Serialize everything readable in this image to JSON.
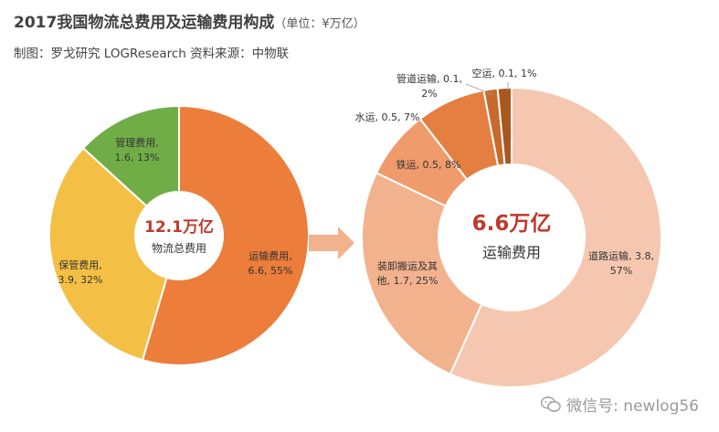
{
  "header": {
    "title": "2017我国物流总费用及运输费用构成",
    "unit": "（单位：¥万亿）",
    "subtitle": "制图：罗戈研究 LOGResearch   资料来源：中物联"
  },
  "center": {
    "left_value": "12.1万亿",
    "left_label": "物流总费用",
    "right_value": "6.6万亿",
    "right_label": "运输费用"
  },
  "chart_data": [
    {
      "type": "pie",
      "series": [
        {
          "name": "运输费用",
          "value": 6.6,
          "percent": 55,
          "label_lines": [
            "运输费用,",
            "6.6, 55%"
          ],
          "color": "#ec7d3a"
        },
        {
          "name": "保管费用",
          "value": 3.9,
          "percent": 32,
          "label_lines": [
            "保管费用,",
            "3.9, 32%"
          ],
          "color": "#f4bf45"
        },
        {
          "name": "管理费用",
          "value": 1.6,
          "percent": 13,
          "label_lines": [
            "管理费用,",
            "1.6, 13%"
          ],
          "color": "#70ad47"
        }
      ]
    },
    {
      "type": "pie",
      "series": [
        {
          "name": "道路运输",
          "value": 3.8,
          "percent": 57,
          "label_lines": [
            "道路运输, 3.8,",
            "57%"
          ],
          "color": "#f6c7b0"
        },
        {
          "name": "装卸搬运及其他",
          "value": 1.7,
          "percent": 25,
          "label_lines": [
            "装卸搬运及其",
            "他, 1.7, 25%"
          ],
          "color": "#f3b28e"
        },
        {
          "name": "铁运",
          "value": 0.5,
          "percent": 8,
          "label_lines": [
            "铁运, 0.5, 8%"
          ],
          "color": "#ef9b6c"
        },
        {
          "name": "水运",
          "value": 0.5,
          "percent": 7,
          "label_lines": [
            "水运, 0.5, 7%"
          ],
          "color": "#e47f41"
        },
        {
          "name": "管道运输",
          "value": 0.1,
          "percent": 2,
          "label_lines": [
            "管道运输, 0.1,",
            "2%"
          ],
          "color": "#c86a2e"
        },
        {
          "name": "空运",
          "value": 0.1,
          "percent": 1,
          "label_lines": [
            "空运, 0.1, 1%"
          ],
          "color": "#a9561f"
        }
      ]
    }
  ],
  "watermark": {
    "icon": "wechat-icon",
    "text": "微信号: newlog56",
    "logo_text": "LOGResearch"
  },
  "colors": {
    "accent_red": "#c0392b",
    "arrow": "#f3b28e"
  }
}
